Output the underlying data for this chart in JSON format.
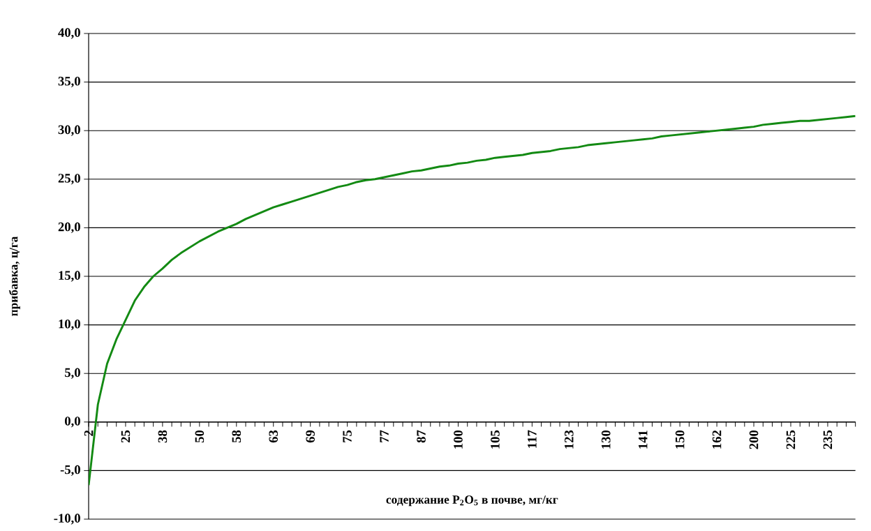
{
  "chart_data": {
    "type": "line",
    "xlabel": "содержание P$_{2}$O$_{5}$ в почве, мг/кг",
    "ylabel": "прибавка, ц/га",
    "categories": [
      "2",
      null,
      null,
      null,
      "25",
      null,
      null,
      null,
      "38",
      null,
      null,
      null,
      "50",
      null,
      null,
      null,
      "58",
      null,
      null,
      null,
      "63",
      null,
      null,
      null,
      "69",
      null,
      null,
      null,
      "75",
      null,
      null,
      null,
      "77",
      null,
      null,
      null,
      "87",
      null,
      null,
      null,
      "100",
      null,
      null,
      null,
      "105",
      null,
      null,
      null,
      "117",
      null,
      null,
      null,
      "123",
      null,
      null,
      null,
      "130",
      null,
      null,
      null,
      "141",
      null,
      null,
      null,
      "150",
      null,
      null,
      null,
      "162",
      null,
      null,
      null,
      "200",
      null,
      null,
      null,
      "225",
      null,
      null,
      null,
      "235",
      null,
      null,
      null
    ],
    "series": [
      {
        "color": "#138a13",
        "values": [
          -6.5,
          1.8,
          6.0,
          8.5,
          10.5,
          12.5,
          13.9,
          15.0,
          15.8,
          16.7,
          17.4,
          18.0,
          18.6,
          19.1,
          19.6,
          20.0,
          20.4,
          20.9,
          21.3,
          21.7,
          22.1,
          22.4,
          22.7,
          23.0,
          23.3,
          23.6,
          23.9,
          24.2,
          24.4,
          24.7,
          24.9,
          25.0,
          25.2,
          25.4,
          25.6,
          25.8,
          25.9,
          26.1,
          26.3,
          26.4,
          26.6,
          26.7,
          26.9,
          27.0,
          27.2,
          27.3,
          27.4,
          27.5,
          27.7,
          27.8,
          27.9,
          28.1,
          28.2,
          28.3,
          28.5,
          28.6,
          28.7,
          28.8,
          28.9,
          29.0,
          29.1,
          29.2,
          29.4,
          29.5,
          29.6,
          29.7,
          29.8,
          29.9,
          30.0,
          30.1,
          30.2,
          30.3,
          30.4,
          30.6,
          30.7,
          30.8,
          30.9,
          31.0,
          31.0,
          31.1,
          31.2,
          31.3,
          31.4,
          31.5
        ]
      }
    ],
    "ylim": [
      -10,
      40
    ],
    "yticks": [
      {
        "value": -10,
        "label": "-10,0"
      },
      {
        "value": -5,
        "label": "-5,0"
      },
      {
        "value": 0,
        "label": "0,0"
      },
      {
        "value": 5,
        "label": "5,0"
      },
      {
        "value": 10,
        "label": "10,0"
      },
      {
        "value": 15,
        "label": "15,0"
      },
      {
        "value": 20,
        "label": "20,0"
      },
      {
        "value": 25,
        "label": "25,0"
      },
      {
        "value": 30,
        "label": "30,0"
      },
      {
        "value": 35,
        "label": "35,0"
      },
      {
        "value": 40,
        "label": "40,0"
      }
    ],
    "grid": "y",
    "marker": "none",
    "line_style": "solid"
  }
}
